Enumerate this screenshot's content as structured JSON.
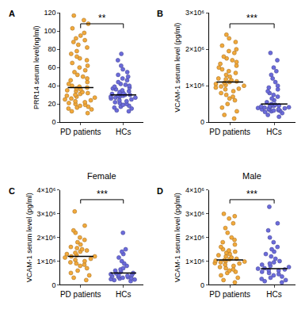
{
  "chart_data": [
    {
      "type": "strip",
      "panel_label": "A",
      "categories": [
        "PD patients",
        "HCs"
      ],
      "y_label": "PRR14 serum level(ng/ml)",
      "ylim": [
        0,
        120
      ],
      "yticks": [
        0,
        20,
        40,
        60,
        80,
        100,
        120
      ],
      "colors": [
        "#F2A93B",
        "#6B6BDB"
      ],
      "marker": "circle",
      "values": [
        [
          117,
          112,
          108,
          103,
          98,
          95,
          92,
          90,
          88,
          85,
          82,
          78,
          75,
          72,
          70,
          68,
          65,
          62,
          60,
          57,
          55,
          52,
          50,
          48,
          46,
          44,
          42,
          40,
          39,
          38,
          37,
          36,
          35,
          34,
          33,
          32,
          31,
          30,
          29,
          28,
          27,
          26,
          25,
          24,
          23,
          22,
          21,
          20,
          19,
          18,
          17,
          16,
          15,
          14,
          12,
          10
        ],
        [
          75,
          68,
          62,
          58,
          55,
          52,
          50,
          48,
          46,
          44,
          42,
          41,
          40,
          39,
          38,
          37,
          36,
          35,
          34,
          33,
          32,
          31,
          31,
          30,
          30,
          29,
          29,
          28,
          28,
          27,
          27,
          26,
          25,
          24,
          23,
          22,
          21,
          20,
          19,
          18,
          17,
          16,
          15,
          13,
          12
        ]
      ],
      "medians": [
        38,
        30
      ],
      "significance": "**"
    },
    {
      "type": "strip",
      "panel_label": "B",
      "categories": [
        "PD patients",
        "HCs"
      ],
      "y_label": "VCAM-1 serum level (pg/ml)",
      "ylim": [
        0,
        3000000
      ],
      "yticks": [
        0,
        {
          "value": 1000000,
          "label": "1×10⁶"
        },
        {
          "value": 2000000,
          "label": "2×10⁶"
        },
        {
          "value": 3000000,
          "label": "3×10⁶"
        }
      ],
      "colors": [
        "#F2A93B",
        "#6B6BDB"
      ],
      "marker": "circle",
      "values": [
        [
          2400000,
          2300000,
          2200000,
          2100000,
          2000000,
          1950000,
          1900000,
          1800000,
          1750000,
          1700000,
          1650000,
          1600000,
          1550000,
          1500000,
          1450000,
          1400000,
          1350000,
          1300000,
          1250000,
          1200000,
          1180000,
          1150000,
          1120000,
          1100000,
          1080000,
          1050000,
          1020000,
          1000000,
          980000,
          950000,
          920000,
          900000,
          850000,
          800000,
          750000,
          700000,
          650000,
          600000,
          500000,
          400000,
          300000,
          200000,
          100000
        ],
        [
          1900000,
          1700000,
          1500000,
          1400000,
          1300000,
          1200000,
          1100000,
          1000000,
          950000,
          900000,
          850000,
          800000,
          750000,
          700000,
          650000,
          600000,
          550000,
          500000,
          480000,
          460000,
          450000,
          440000,
          430000,
          420000,
          410000,
          400000,
          390000,
          380000,
          370000,
          360000,
          350000,
          340000,
          330000,
          320000,
          310000,
          300000,
          280000,
          250000,
          200000,
          150000
        ]
      ],
      "medians": [
        1100000,
        500000
      ],
      "significance": "***"
    },
    {
      "type": "strip",
      "panel_label": "C",
      "title": "Female",
      "categories": [
        "PD patients",
        "HCs"
      ],
      "y_label": "VCAM-1 serum level (pg/ml)",
      "ylim": [
        0,
        4000000
      ],
      "yticks": [
        0,
        {
          "value": 1000000,
          "label": "1×10⁶"
        },
        {
          "value": 2000000,
          "label": "2×10⁶"
        },
        {
          "value": 3000000,
          "label": "3×10⁶"
        },
        {
          "value": 4000000,
          "label": "4×10⁶"
        }
      ],
      "colors": [
        "#F2A93B",
        "#6B6BDB"
      ],
      "marker": "circle",
      "values": [
        [
          3100000,
          2500000,
          2300000,
          2200000,
          2000000,
          1900000,
          1800000,
          1700000,
          1600000,
          1550000,
          1500000,
          1450000,
          1400000,
          1350000,
          1300000,
          1250000,
          1200000,
          1200000,
          1150000,
          1100000,
          1050000,
          1000000,
          950000,
          900000,
          850000,
          800000,
          700000,
          600000,
          500000,
          400000,
          300000,
          200000
        ],
        [
          2200000,
          1500000,
          1400000,
          1300000,
          1150000,
          1000000,
          900000,
          800000,
          700000,
          650000,
          600000,
          550000,
          500000,
          480000,
          450000,
          420000,
          400000,
          380000,
          360000,
          340000,
          320000,
          300000,
          280000,
          260000,
          240000,
          220000,
          200000,
          150000
        ]
      ],
      "medians": [
        1200000,
        500000
      ],
      "significance": "***"
    },
    {
      "type": "strip",
      "panel_label": "D",
      "title": "Male",
      "categories": [
        "PD patients",
        "HCs"
      ],
      "y_label": "VCAM-1 serum level (pg/ml)",
      "ylim": [
        0,
        4000000
      ],
      "yticks": [
        0,
        {
          "value": 1000000,
          "label": "1×10⁶"
        },
        {
          "value": 2000000,
          "label": "2×10⁶"
        },
        {
          "value": 3000000,
          "label": "3×10⁶"
        },
        {
          "value": 4000000,
          "label": "4×10⁶"
        }
      ],
      "colors": [
        "#F2A93B",
        "#6B6BDB"
      ],
      "marker": "circle",
      "values": [
        [
          3000000,
          2900000,
          2800000,
          2600000,
          2400000,
          2200000,
          2000000,
          1900000,
          1800000,
          1700000,
          1600000,
          1500000,
          1450000,
          1400000,
          1350000,
          1300000,
          1250000,
          1200000,
          1150000,
          1100000,
          1080000,
          1050000,
          1020000,
          1000000,
          980000,
          950000,
          920000,
          900000,
          850000,
          800000,
          750000,
          700000,
          650000,
          600000,
          550000,
          500000,
          400000,
          300000,
          200000,
          100000
        ],
        [
          3300000,
          2600000,
          2300000,
          2000000,
          1800000,
          1600000,
          1500000,
          1400000,
          1300000,
          1200000,
          1100000,
          1000000,
          950000,
          900000,
          850000,
          800000,
          750000,
          700000,
          680000,
          650000,
          620000,
          600000,
          550000,
          500000,
          450000,
          400000,
          350000,
          300000,
          250000,
          200000,
          150000,
          100000
        ]
      ],
      "medians": [
        1050000,
        680000
      ],
      "significance": "***"
    }
  ]
}
